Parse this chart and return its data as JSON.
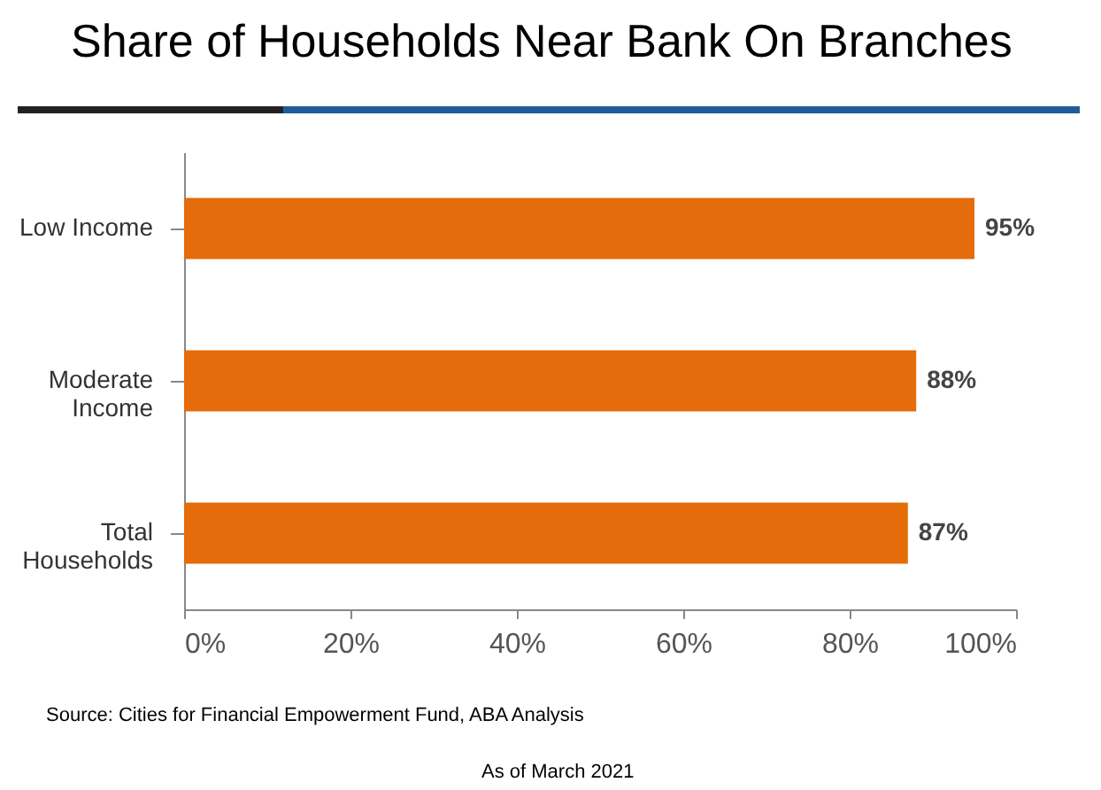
{
  "chart_data": {
    "type": "bar",
    "orientation": "horizontal",
    "title": "Share of Households Near Bank On Branches",
    "categories": [
      "Low Income",
      "Moderate Income",
      "Total Households"
    ],
    "values": [
      95,
      88,
      87
    ],
    "color": "#e46c0a",
    "value_labels": [
      "95%",
      "88%",
      "87%"
    ],
    "xlim": [
      0,
      100
    ],
    "xticks": [
      {
        "value": 0,
        "label": "0%"
      },
      {
        "value": 20,
        "label": "20%"
      },
      {
        "value": 40,
        "label": "40%"
      },
      {
        "value": 60,
        "label": "60%"
      },
      {
        "value": 80,
        "label": "80%"
      },
      {
        "value": 100,
        "label": "100%"
      }
    ],
    "grid": false,
    "annotations": [
      "Source: Cities for Financial Empowerment Fund, ABA Analysis",
      "As of March 2021"
    ]
  }
}
